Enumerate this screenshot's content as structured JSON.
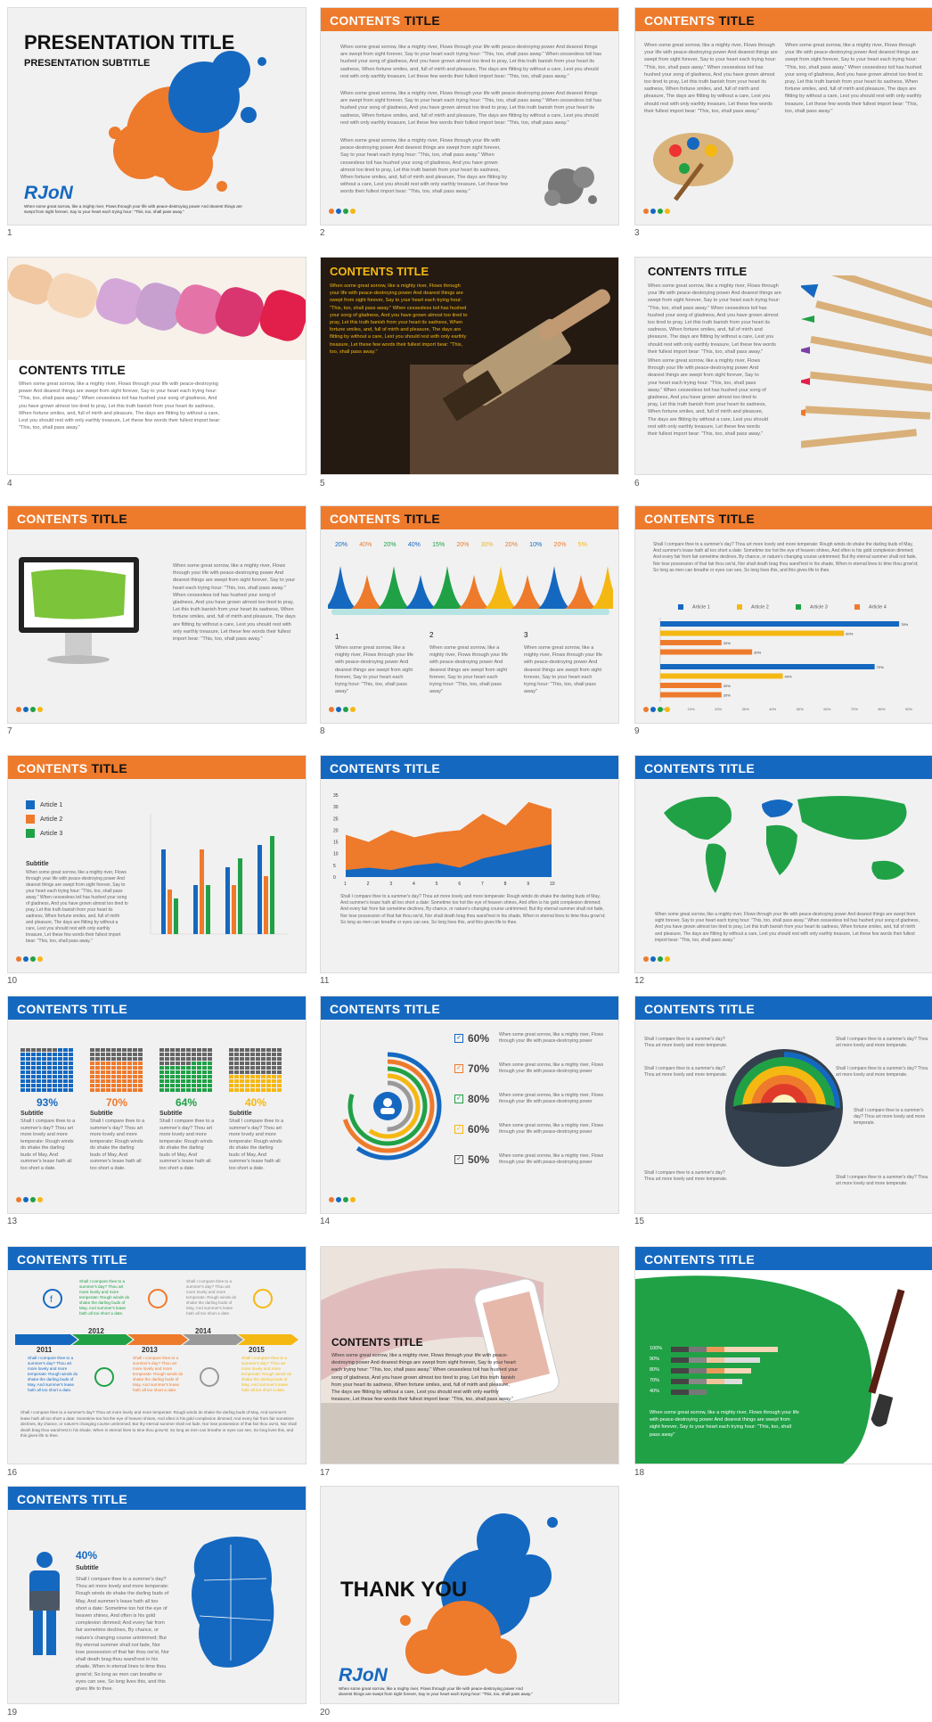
{
  "slide_numbers": [
    "1",
    "2",
    "3",
    "4",
    "5",
    "6",
    "7",
    "8",
    "9",
    "10",
    "11",
    "12",
    "13",
    "14",
    "15",
    "16",
    "17",
    "18",
    "19",
    "20"
  ],
  "cover": {
    "title": "PRESENTATION TITLE",
    "subtitle": "PRESENTATION SUBTITLE",
    "logo": "RJoN",
    "text": "When some great sorrow, like a mighty river, Flows through your life with peace-destroying power And dearest things are swept from sight forever, Say to your heart each trying hour: \"This, too, shall pass away.\""
  },
  "contents_word": "CONTENTS",
  "title_word": "TITLE",
  "contents_title": "CONTENTS TITLE",
  "body_long": "When some great sorrow, like a mighty river, Flows through your life with peace-destroying power And dearest things are swept from sight forever, Say to your heart each trying hour: \"This, too, shall pass away.\" When cessesless toil has hushed your song of gladness, And you have grown almost too tired to pray, Let this truth banish from your heart its sadness, When fortune smiles, and, full of mirth and pleasure, The days are flitting by without a care, Lest you should rest with only earthly treasure, Let these few words their fullest import bear: \"This, too, shall pass away.\"",
  "body_short": "When some great sorrow, like a mighty river, Flows through your life with peace-destroying power And dearest things are swept from sight forever, Say to your heart each trying hour: \"This, too, shall pass away\"",
  "body_compare": "Shall I compare thee to a summer's day? Thou art more lovely and more temperate: Rough winds do shake the darling buds of May, And summer's lease hath all too short a date: Sometime too hot the eye of heaven shines, And often is his gold complexion dimmed; And every fair from fair sometime declines, By chance, or nature's changing course untrimmed; But thy eternal summer shall not fade, Nor lose possession of that fair thou ow'st, Nor shall death brag thou wand'rest in his shade, When in eternal lines to time thou grow'st; So long as men can breathe or eyes can see, So long lives this, and this gives life to thee.",
  "body_compare_short": "Shall I compare thee to a summer's day? Thou art more lovely and more temperate: Rough winds do shake the darling buds of May, And summer's lease hath all too short a date.",
  "thou_short": "Shall I compare thee to a summer's day? Thou art more lovely and more temperate.",
  "numbered": [
    "1",
    "2",
    "3"
  ],
  "mountain_pcts": [
    "20%",
    "40%",
    "20%",
    "40%",
    "15%",
    "20%",
    "30%",
    "20%",
    "10%",
    "20%",
    "5%"
  ],
  "hbar_legend": [
    "Article 1",
    "Article 2",
    "Article 3",
    "Article 4"
  ],
  "hbar_values": [
    {
      "label": "78%",
      "pct": 78,
      "color": "#1568c0"
    },
    {
      "label": "60%",
      "pct": 60,
      "color": "#f5b812"
    },
    {
      "label": "20%",
      "pct": 20,
      "color": "#ee7a2c"
    },
    {
      "label": "30%",
      "pct": 30,
      "color": "#ee7a2c"
    },
    {
      "label": "70%",
      "pct": 70,
      "color": "#1568c0"
    },
    {
      "label": "40%",
      "pct": 40,
      "color": "#f5b812"
    },
    {
      "label": "20%",
      "pct": 20,
      "color": "#ee7a2c"
    },
    {
      "label": "20%",
      "pct": 20,
      "color": "#ee7a2c"
    }
  ],
  "hbar_axis": [
    "0%",
    "10%",
    "20%",
    "30%",
    "40%",
    "50%",
    "60%",
    "70%",
    "80%",
    "90%"
  ],
  "vbar_legend": [
    "Article 1",
    "Article 2",
    "Article 3"
  ],
  "vbar_subtitle": "Subtitle",
  "area_y": [
    "35",
    "30",
    "25",
    "20",
    "15",
    "10",
    "5",
    "0"
  ],
  "area_x": [
    "1",
    "2",
    "3",
    "4",
    "5",
    "6",
    "7",
    "8",
    "9",
    "10"
  ],
  "waffle_pcts": [
    "93%",
    "70%",
    "64%",
    "40%"
  ],
  "subtitle": "Subtitle",
  "ring_pcts": [
    "60%",
    "70%",
    "80%",
    "60%",
    "50%"
  ],
  "ring_text": "When some great sorrow, like a mighty river, Flows through your life with peace-destroying power",
  "years": [
    "2011",
    "2012",
    "2013",
    "2014",
    "2015"
  ],
  "hbar18_labels": [
    "100%",
    "90%",
    "80%",
    "70%",
    "40%"
  ],
  "person_pct": "40%",
  "thank_you": "THANK YOU",
  "colors": {
    "orange": "#ee7a2c",
    "blue": "#1568c0",
    "green": "#20a146",
    "yellow": "#f5b812",
    "gray": "#555555"
  }
}
